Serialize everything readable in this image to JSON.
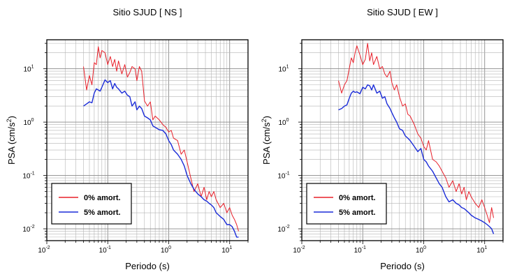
{
  "chart_data": [
    {
      "type": "line",
      "title": "Sitio SJUD [ NS ]",
      "xlabel": "Periodo (s)",
      "ylabel_main": "PSA (cm/s",
      "ylabel_sup": "2",
      "ylabel_close": ")",
      "x_scale": "log",
      "y_scale": "log",
      "xlim": [
        0.01,
        20
      ],
      "ylim": [
        0.006,
        35
      ],
      "grid": true,
      "legend_placement": "bottom-left",
      "x_ticks": [
        {
          "base": "10",
          "exp": "-2",
          "value": 0.01
        },
        {
          "base": "10",
          "exp": "-1",
          "value": 0.1
        },
        {
          "base": "10",
          "exp": "0",
          "value": 1
        },
        {
          "base": "10",
          "exp": "1",
          "value": 10
        }
      ],
      "y_ticks": [
        {
          "base": "10",
          "exp": "-2",
          "value": 0.01
        },
        {
          "base": "10",
          "exp": "-1",
          "value": 0.1
        },
        {
          "base": "10",
          "exp": "0",
          "value": 1
        },
        {
          "base": "10",
          "exp": "1",
          "value": 10
        }
      ],
      "series": [
        {
          "name": "0% amort.",
          "color": "#e8202a",
          "x": [
            0.04,
            0.045,
            0.05,
            0.055,
            0.06,
            0.065,
            0.07,
            0.075,
            0.08,
            0.09,
            0.1,
            0.11,
            0.12,
            0.13,
            0.14,
            0.15,
            0.17,
            0.19,
            0.21,
            0.23,
            0.25,
            0.28,
            0.3,
            0.33,
            0.36,
            0.4,
            0.45,
            0.5,
            0.55,
            0.6,
            0.7,
            0.8,
            0.9,
            1.0,
            1.1,
            1.2,
            1.4,
            1.6,
            1.8,
            2.0,
            2.3,
            2.6,
            3.0,
            3.4,
            3.8,
            4.2,
            4.6,
            5.0,
            5.5,
            6.0,
            7.0,
            8.0,
            9.0,
            10.0,
            11.0,
            12.0,
            13.0,
            14.0
          ],
          "y": [
            11,
            4.0,
            7.5,
            5.0,
            13,
            12,
            26,
            16,
            22,
            20,
            12,
            17,
            11,
            15,
            9,
            14,
            8,
            12,
            7,
            8.5,
            11,
            10,
            6,
            11,
            9,
            2.5,
            2.0,
            2.4,
            1.1,
            1.3,
            1.1,
            0.9,
            0.8,
            0.65,
            0.7,
            0.5,
            0.45,
            0.25,
            0.3,
            0.18,
            0.09,
            0.05,
            0.07,
            0.04,
            0.06,
            0.035,
            0.05,
            0.04,
            0.05,
            0.035,
            0.025,
            0.03,
            0.02,
            0.025,
            0.018,
            0.015,
            0.012,
            0.009
          ]
        },
        {
          "name": "5% amort.",
          "color": "#1a2bd8",
          "x": [
            0.04,
            0.045,
            0.05,
            0.055,
            0.06,
            0.065,
            0.07,
            0.075,
            0.08,
            0.09,
            0.1,
            0.11,
            0.12,
            0.13,
            0.14,
            0.15,
            0.17,
            0.19,
            0.21,
            0.23,
            0.25,
            0.28,
            0.3,
            0.33,
            0.36,
            0.4,
            0.45,
            0.5,
            0.55,
            0.6,
            0.7,
            0.8,
            0.9,
            1.0,
            1.1,
            1.2,
            1.4,
            1.6,
            1.8,
            2.0,
            2.3,
            2.6,
            3.0,
            3.4,
            3.8,
            4.2,
            4.6,
            5.0,
            5.5,
            6.0,
            7.0,
            8.0,
            9.0,
            10.0,
            11.0,
            12.0,
            13.0,
            14.0
          ],
          "y": [
            2.0,
            2.2,
            2.4,
            2.3,
            3.5,
            4.2,
            4.0,
            3.8,
            4.5,
            6.2,
            5.5,
            6.0,
            4.2,
            5.3,
            4.5,
            4.2,
            3.5,
            3.8,
            3.2,
            3.0,
            2.0,
            2.4,
            1.7,
            2.0,
            1.8,
            1.3,
            1.2,
            1.1,
            0.85,
            0.8,
            0.72,
            0.7,
            0.6,
            0.45,
            0.38,
            0.3,
            0.25,
            0.2,
            0.15,
            0.1,
            0.07,
            0.055,
            0.045,
            0.04,
            0.035,
            0.033,
            0.03,
            0.028,
            0.025,
            0.02,
            0.017,
            0.015,
            0.012,
            0.012,
            0.011,
            0.009,
            0.007,
            0.007
          ]
        }
      ]
    },
    {
      "type": "line",
      "title": "Sitio SJUD [ EW ]",
      "xlabel": "Periodo (s)",
      "ylabel_main": "PSA (cm/s",
      "ylabel_sup": "2",
      "ylabel_close": ")",
      "x_scale": "log",
      "y_scale": "log",
      "xlim": [
        0.01,
        20
      ],
      "ylim": [
        0.006,
        35
      ],
      "grid": true,
      "legend_placement": "bottom-left",
      "x_ticks": [
        {
          "base": "10",
          "exp": "-2",
          "value": 0.01
        },
        {
          "base": "10",
          "exp": "-1",
          "value": 0.1
        },
        {
          "base": "10",
          "exp": "0",
          "value": 1
        },
        {
          "base": "10",
          "exp": "1",
          "value": 10
        }
      ],
      "y_ticks": [
        {
          "base": "10",
          "exp": "-2",
          "value": 0.01
        },
        {
          "base": "10",
          "exp": "-1",
          "value": 0.1
        },
        {
          "base": "10",
          "exp": "0",
          "value": 1
        },
        {
          "base": "10",
          "exp": "1",
          "value": 10
        }
      ],
      "series": [
        {
          "name": "0% amort.",
          "color": "#e8202a",
          "x": [
            0.04,
            0.045,
            0.05,
            0.055,
            0.06,
            0.065,
            0.07,
            0.075,
            0.08,
            0.09,
            0.1,
            0.11,
            0.12,
            0.13,
            0.14,
            0.15,
            0.17,
            0.19,
            0.21,
            0.23,
            0.25,
            0.28,
            0.3,
            0.33,
            0.36,
            0.4,
            0.45,
            0.5,
            0.55,
            0.6,
            0.7,
            0.8,
            0.9,
            1.0,
            1.1,
            1.2,
            1.4,
            1.6,
            1.8,
            2.0,
            2.3,
            2.6,
            3.0,
            3.4,
            3.8,
            4.2,
            4.6,
            5.0,
            5.5,
            6.0,
            7.0,
            8.0,
            9.0,
            10.0,
            11.0,
            12.0,
            13.0,
            14.0
          ],
          "y": [
            6.0,
            3.5,
            5.0,
            6.0,
            10,
            16,
            13,
            20,
            27,
            18,
            12,
            15,
            30,
            14,
            20,
            12,
            17,
            10,
            11,
            8,
            7,
            9,
            5.5,
            4.0,
            5.0,
            3.0,
            2.0,
            2.2,
            1.4,
            1.3,
            0.9,
            0.6,
            0.5,
            0.35,
            0.3,
            0.45,
            0.2,
            0.18,
            0.15,
            0.12,
            0.09,
            0.06,
            0.08,
            0.05,
            0.07,
            0.045,
            0.06,
            0.035,
            0.05,
            0.04,
            0.03,
            0.025,
            0.035,
            0.025,
            0.018,
            0.013,
            0.025,
            0.016
          ]
        },
        {
          "name": "5% amort.",
          "color": "#1a2bd8",
          "x": [
            0.04,
            0.045,
            0.05,
            0.055,
            0.06,
            0.065,
            0.07,
            0.075,
            0.08,
            0.09,
            0.1,
            0.11,
            0.12,
            0.13,
            0.14,
            0.15,
            0.17,
            0.19,
            0.21,
            0.23,
            0.25,
            0.28,
            0.3,
            0.33,
            0.36,
            0.4,
            0.45,
            0.5,
            0.55,
            0.6,
            0.7,
            0.8,
            0.9,
            1.0,
            1.1,
            1.2,
            1.4,
            1.6,
            1.8,
            2.0,
            2.3,
            2.6,
            3.0,
            3.4,
            3.8,
            4.2,
            4.6,
            5.0,
            5.5,
            6.0,
            7.0,
            8.0,
            9.0,
            10.0,
            11.0,
            12.0,
            13.0,
            14.0
          ],
          "y": [
            1.7,
            1.8,
            2.0,
            2.1,
            2.8,
            3.5,
            3.8,
            3.6,
            3.7,
            3.4,
            4.5,
            4.2,
            5.0,
            4.8,
            4.0,
            5.0,
            3.5,
            3.8,
            2.8,
            3.0,
            2.2,
            1.8,
            1.5,
            1.2,
            1.0,
            0.75,
            0.7,
            0.55,
            0.5,
            0.45,
            0.35,
            0.28,
            0.32,
            0.2,
            0.18,
            0.15,
            0.12,
            0.09,
            0.07,
            0.06,
            0.04,
            0.032,
            0.035,
            0.03,
            0.028,
            0.025,
            0.024,
            0.022,
            0.02,
            0.018,
            0.016,
            0.015,
            0.014,
            0.013,
            0.012,
            0.011,
            0.01,
            0.008
          ]
        }
      ]
    }
  ]
}
